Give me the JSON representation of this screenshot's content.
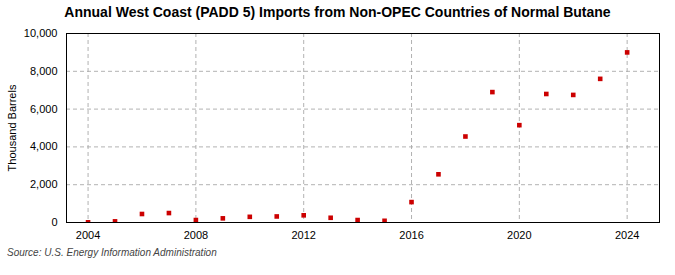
{
  "chart_data": {
    "type": "scatter",
    "title": "Annual West Coast (PADD 5) Imports from Non-OPEC Countries of Normal Butane",
    "ylabel": "Thousand Barrels",
    "source": "Source: U.S. Energy Information Administration",
    "x": [
      2004,
      2005,
      2006,
      2007,
      2008,
      2009,
      2010,
      2011,
      2012,
      2013,
      2014,
      2015,
      2016,
      2017,
      2018,
      2019,
      2020,
      2021,
      2022,
      2023,
      2024
    ],
    "values": [
      10,
      60,
      450,
      500,
      130,
      220,
      300,
      320,
      380,
      250,
      130,
      90,
      1080,
      2550,
      4550,
      6900,
      5150,
      6800,
      6750,
      7600,
      9000
    ],
    "color": "#cc0000",
    "marker": "square",
    "xlim": [
      2003.2,
      2025.2
    ],
    "ylim": [
      0,
      10000
    ],
    "xticks": [
      2004,
      2008,
      2012,
      2016,
      2020,
      2024
    ],
    "yticks": [
      0,
      {
        "value": 2000,
        "label": "2,000"
      },
      {
        "value": 4000,
        "label": "4,000"
      },
      {
        "value": 6000,
        "label": "6,000"
      },
      {
        "value": 8000,
        "label": "8,000"
      },
      {
        "value": 10000,
        "label": "10,000"
      }
    ],
    "grid": true
  }
}
